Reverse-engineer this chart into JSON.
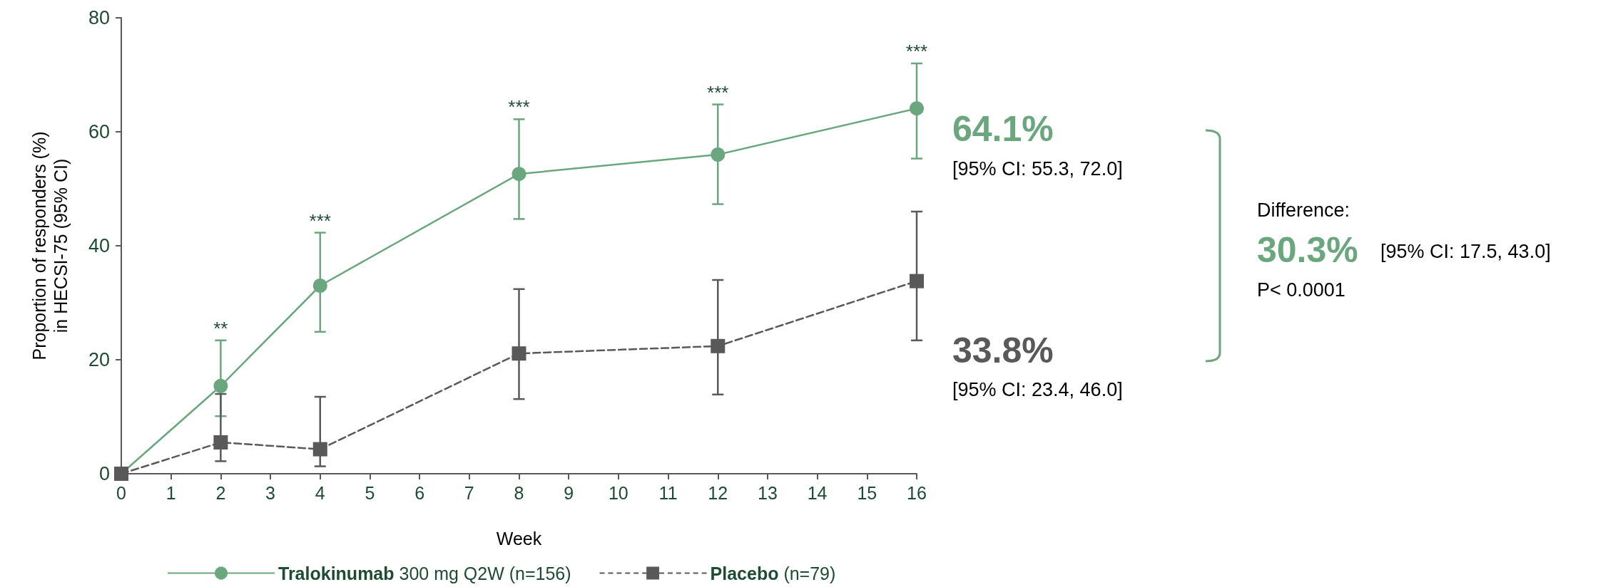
{
  "chart_data": {
    "type": "line",
    "xlabel": "Week",
    "ylabel": "Proportion of responders (%) in HECSI-75 (95% CI)",
    "x": [
      0,
      2,
      4,
      8,
      12,
      16
    ],
    "series": [
      {
        "name": "Tralokinumab 300 mg Q2W (n=156)",
        "color": "#6aa67e",
        "marker": "circle",
        "line_style": "solid",
        "values": [
          0,
          15.4,
          33.0,
          52.6,
          56.0,
          64.1
        ],
        "errors": [
          null,
          [
            10.1,
            23.4
          ],
          [
            24.9,
            42.3
          ],
          [
            44.7,
            62.2
          ],
          [
            47.3,
            64.8
          ],
          [
            55.3,
            72.0
          ]
        ]
      },
      {
        "name": "Placebo (n=79)",
        "color": "#595959",
        "marker": "square",
        "line_style": "dashed",
        "values": [
          0,
          5.5,
          4.3,
          21.1,
          22.4,
          33.8
        ],
        "errors": [
          null,
          [
            2.2,
            14.0
          ],
          [
            1.3,
            13.5
          ],
          [
            13.1,
            32.4
          ],
          [
            13.9,
            34.0
          ],
          [
            23.4,
            46.0
          ]
        ]
      }
    ],
    "xlim": [
      0,
      16
    ],
    "xticks": [
      0,
      1,
      2,
      3,
      4,
      5,
      6,
      7,
      8,
      9,
      10,
      11,
      12,
      13,
      14,
      15,
      16
    ],
    "ylim": [
      0,
      80
    ],
    "yticks": [
      0,
      20,
      40,
      60,
      80
    ],
    "grid": false,
    "legend": "bottom",
    "annotations": [
      {
        "text": "**",
        "x": 2,
        "y": 23.4
      },
      {
        "text": "***",
        "x": 4,
        "y": 42.3
      },
      {
        "text": "***",
        "x": 8,
        "y": 62.2
      },
      {
        "text": "***",
        "x": 12,
        "y": 64.8
      },
      {
        "text": "***",
        "x": 16,
        "y": 72.0
      },
      "64.1%",
      "[95% CI: 55.3, 72.0]",
      "33.8%",
      "[95% CI: 23.4, 46.0]",
      "Difference:",
      "30.3%",
      "[95% CI: 17.5, 43.0]",
      "P< 0.0001"
    ]
  }
}
